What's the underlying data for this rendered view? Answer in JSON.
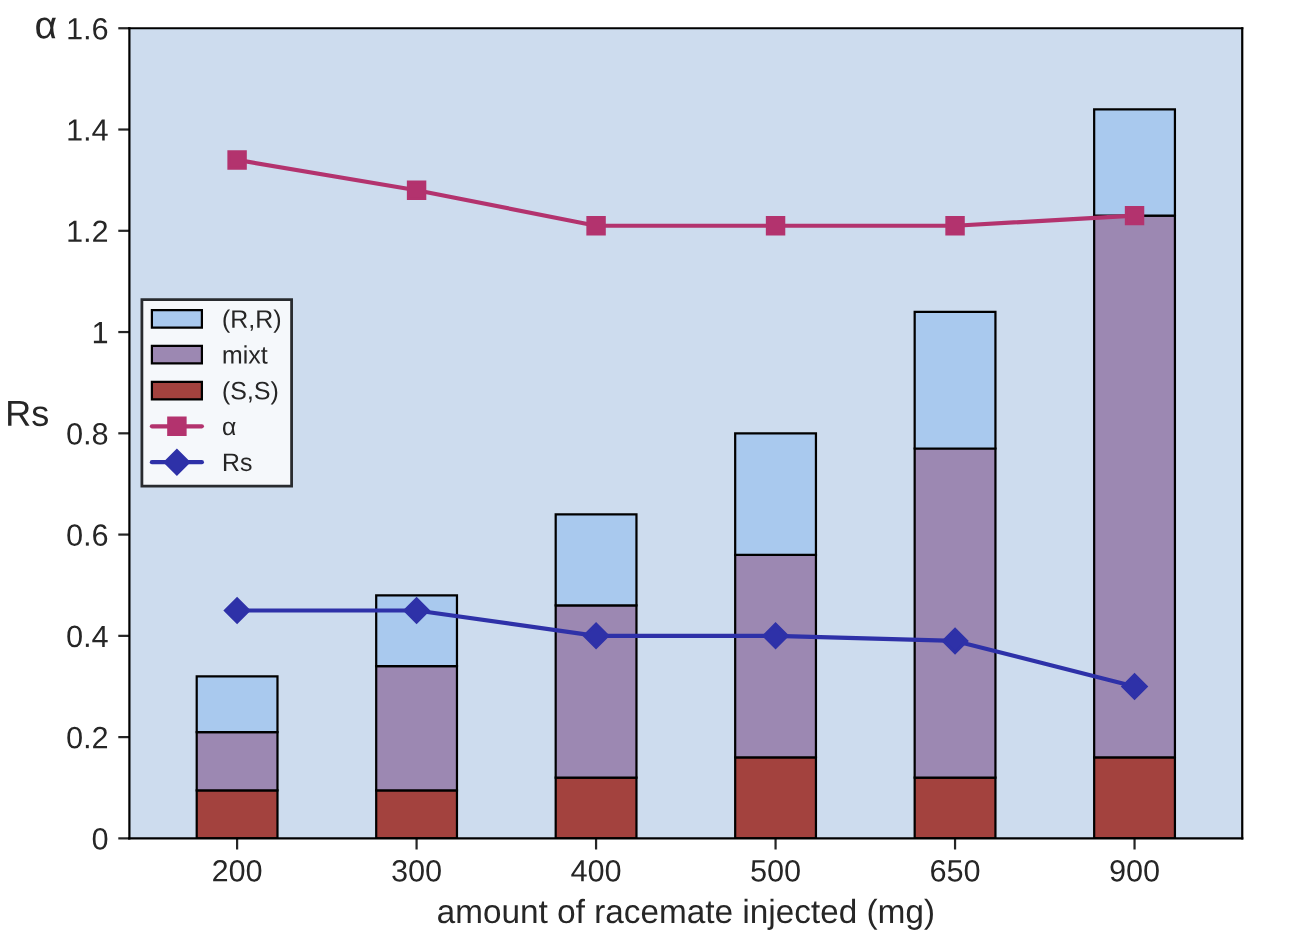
{
  "chart_data": {
    "type": "bar",
    "stacked": true,
    "xlabel": "amount of racemate injected (mg)",
    "ylabel": "Rs",
    "annotations": [
      "α"
    ],
    "categories": [
      "200",
      "300",
      "400",
      "500",
      "650",
      "900"
    ],
    "series": [
      {
        "name": "(S,S)",
        "color": "#a3423e",
        "values": [
          0.095,
          0.095,
          0.12,
          0.16,
          0.12,
          0.16
        ]
      },
      {
        "name": "mixt",
        "color": "#9c88b2",
        "values": [
          0.115,
          0.245,
          0.34,
          0.4,
          0.65,
          1.07
        ]
      },
      {
        "name": "(R,R)",
        "color": "#a9c9ee",
        "values": [
          0.11,
          0.14,
          0.18,
          0.24,
          0.27,
          0.21
        ]
      },
      {
        "name": "α",
        "type": "line",
        "color": "#b3336e",
        "marker": "square",
        "values": [
          1.34,
          1.28,
          1.21,
          1.21,
          1.21,
          1.23
        ]
      },
      {
        "name": "Rs",
        "type": "line",
        "color": "#2e31a8",
        "marker": "diamond",
        "values": [
          0.45,
          0.45,
          0.4,
          0.4,
          0.39,
          0.3
        ]
      }
    ],
    "ylim": [
      0,
      1.6
    ],
    "yticks": [
      0,
      0.2,
      0.4,
      0.6,
      0.8,
      1,
      1.2,
      1.4,
      1.6
    ],
    "grid": false,
    "legend": "center left"
  }
}
